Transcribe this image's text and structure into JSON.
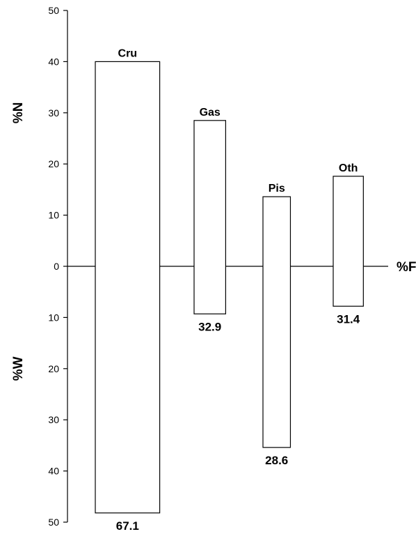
{
  "chart_data": {
    "type": "bar",
    "subtype": "costello-diagram",
    "y_upper_label": "%N",
    "y_lower_label": "%W",
    "x_label": "%F",
    "y_upper_ticks": [
      "50",
      "40",
      "30",
      "20",
      "10",
      "0"
    ],
    "y_lower_ticks": [
      "10",
      "20",
      "30",
      "40",
      "50"
    ],
    "ylim_upper": [
      0,
      50
    ],
    "ylim_lower": [
      0,
      50
    ],
    "xlim": [
      0,
      200
    ],
    "categories": [
      {
        "name": "Cru",
        "frequency": 67.1,
        "frequency_label": "67.1",
        "n_percent": 40,
        "w_percent": 48.2
      },
      {
        "name": "Gas",
        "frequency": 32.9,
        "frequency_label": "32.9",
        "n_percent": 28.5,
        "w_percent": 9.3
      },
      {
        "name": "Pis",
        "frequency": 28.6,
        "frequency_label": "28.6",
        "n_percent": 13.6,
        "w_percent": 35.4
      },
      {
        "name": "Oth",
        "frequency": 31.4,
        "frequency_label": "31.4",
        "n_percent": 17.6,
        "w_percent": 7.8
      }
    ],
    "grid": false,
    "legend": "none"
  }
}
